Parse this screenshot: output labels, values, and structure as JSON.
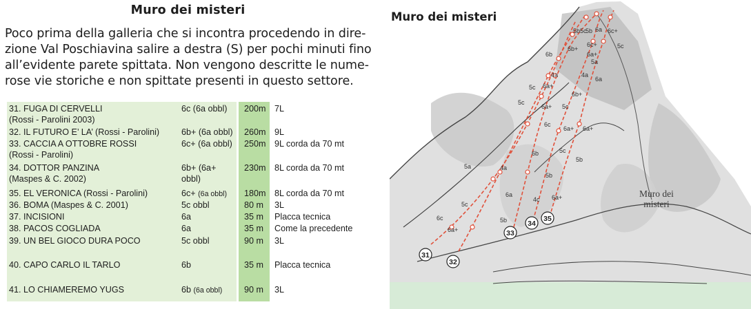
{
  "page_title": "Muro dei misteri",
  "intro": {
    "lines": [
      "Poco prima della galleria che si incontra procedendo in dire-",
      "zione Val Poschiavina salire a destra (S) per pochi minuti fino",
      "all’evidente parete spittata. Non vengono descritte le nume-",
      "rose vie storiche e non spittate presenti in questo settore."
    ]
  },
  "routes": [
    {
      "name": "31. FUGA DI CERVELLI",
      "authors": "(Rossi - Parolini 2003)",
      "grade": "6c (6a obbl)",
      "length": "200m",
      "note": "7L"
    },
    {
      "name": "32. IL FUTURO E’ LA’ (Rossi - Parolini)",
      "authors": "",
      "grade": "6b+ (6a obbl)",
      "length": "260m",
      "note": "9L"
    },
    {
      "name": "33. CACCIA A OTTOBRE ROSSI",
      "authors": "(Rossi - Parolini)",
      "grade": "6c+ (6a obbl)",
      "length": "250m",
      "note": "9L corda da 70 mt"
    },
    {
      "name": "34. DOTTOR PANZINA",
      "authors": "(Maspes & C. 2002)",
      "grade": "6b+ (6a+",
      "grade2": "obbl)",
      "length": "230m",
      "note": "8L corda da 70 mt"
    },
    {
      "name": "35. EL VERONICA (Rossi - Parolini)",
      "authors": "",
      "grade": "6c+",
      "grade_small": "(6a obbl)",
      "length": "180m",
      "note": "8L corda da 70 mt"
    },
    {
      "name": "36. BOMA (Maspes & C. 2001)",
      "authors": "",
      "grade": "5c obbl",
      "length": "80 m",
      "note": "3L"
    },
    {
      "name": "37. INCISIONI",
      "authors": "",
      "grade": "6a",
      "length": "35 m",
      "note": "Placca tecnica"
    },
    {
      "name": "38. PACOS COGLIADA",
      "authors": "",
      "grade": "6a",
      "length": "35 m",
      "note": "Come la precedente"
    },
    {
      "name": "39. UN BEL GIOCO DURA POCO",
      "authors": "",
      "grade": "5c obbl",
      "length": "90 m",
      "note": "3L"
    },
    {
      "name": "40. CAPO CARLO IL TARLO",
      "authors": "",
      "grade": "6b",
      "length": "35 m",
      "note": "Placca tecnica"
    },
    {
      "name": "41. LO CHIAMEREMO YUGS",
      "authors": "",
      "grade": "6b",
      "grade_small": "(6a obbl)",
      "length": "90 m",
      "note": "3L"
    }
  ],
  "topo": {
    "title": "Muro dei misteri",
    "wall_label_line1": "Muro dei",
    "wall_label_line2": "misteri",
    "route_numbers": [
      "31",
      "32",
      "33",
      "34",
      "35"
    ],
    "grades": [
      "5b",
      "5c",
      "5b",
      "6a",
      "6c+",
      "6b+",
      "6c+",
      "5c",
      "6b",
      "6a+",
      "5a",
      "4a",
      "4a",
      "6a",
      "5c",
      "6a+",
      "6b+",
      "5c",
      "6a+",
      "5c",
      "6c",
      "6a+",
      "6a+",
      "6b",
      "5c",
      "5b",
      "5a",
      "4a",
      "5b",
      "6a",
      "4c",
      "6a+",
      "5c",
      "6c",
      "6a+",
      "5b"
    ],
    "colors": {
      "route_line": "#e0503a",
      "rock_dark": "#b4b4b4",
      "rock_light": "#dcdcdc",
      "grass": "#d7ebd7"
    }
  }
}
